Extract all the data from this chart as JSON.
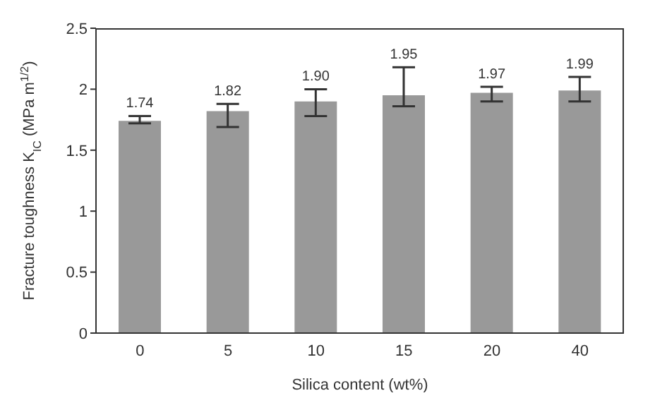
{
  "chart_data": {
    "type": "bar",
    "xlabel": "Silica content (wt%)",
    "ylabel": "Fracture toughness K$_{IC}$ (MPa m$^{1/2}$)",
    "categories": [
      "0",
      "5",
      "10",
      "15",
      "20",
      "40"
    ],
    "values": [
      1.74,
      1.82,
      1.9,
      1.95,
      1.97,
      1.99
    ],
    "value_labels": [
      "1.74",
      "1.82",
      "1.90",
      "1.95",
      "1.97",
      "1.99"
    ],
    "errors": [
      [
        1.72,
        1.78
      ],
      [
        1.69,
        1.88
      ],
      [
        1.78,
        2.0
      ],
      [
        1.86,
        2.18
      ],
      [
        1.9,
        2.02
      ],
      [
        1.9,
        2.1
      ]
    ],
    "color": "#999999",
    "ylim": [
      0,
      2.5
    ],
    "yticks": [
      0,
      0.5,
      1,
      1.5,
      2,
      2.5
    ],
    "grid": false
  }
}
